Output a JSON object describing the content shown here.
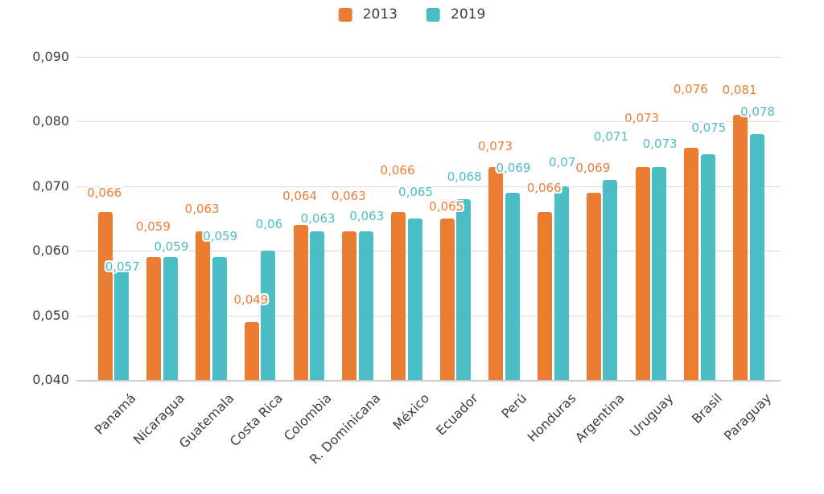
{
  "chart_data": {
    "type": "bar",
    "title": "",
    "categories": [
      "Panamá",
      "Nicaragua",
      "Guatemala",
      "Costa Rica",
      "Colombia",
      "R. Dominicana",
      "México",
      "Ecuador",
      "Perú",
      "Honduras",
      "Argentina",
      "Uruguay",
      "Brasil",
      "Paraguay"
    ],
    "series": [
      {
        "name": "2013",
        "color": "#EB7D33",
        "values": [
          0.066,
          0.059,
          0.063,
          0.049,
          0.064,
          0.063,
          0.066,
          0.065,
          0.073,
          0.066,
          0.069,
          0.073,
          0.076,
          0.081
        ],
        "labels": [
          "0,066",
          "0,059",
          "0,063",
          "0,049",
          "0,064",
          "0,063",
          "0,066",
          "0,065",
          "0,073",
          "0,066",
          "0,069",
          "0,073",
          "0,076",
          "0,081"
        ]
      },
      {
        "name": "2019",
        "color": "#4ABDC5",
        "values": [
          0.057,
          0.059,
          0.059,
          0.06,
          0.063,
          0.063,
          0.065,
          0.068,
          0.069,
          0.07,
          0.071,
          0.073,
          0.075,
          0.078
        ],
        "labels": [
          "0,057",
          "0,059",
          "0,059",
          "0,06",
          "0,063",
          "0,063",
          "0,065",
          "0,068",
          "0,069",
          "0,07",
          "0,071",
          "0,073",
          "0,075",
          "0,078"
        ]
      }
    ],
    "ylim": [
      0.04,
      0.09
    ],
    "yticks": [
      {
        "value": 0.09,
        "label": "0,090"
      },
      {
        "value": 0.08,
        "label": "0,080"
      },
      {
        "value": 0.07,
        "label": "0,070"
      },
      {
        "value": 0.06,
        "label": "0,060"
      },
      {
        "value": 0.05,
        "label": "0,050"
      },
      {
        "value": 0.04,
        "label": "0,040"
      }
    ],
    "grid": true,
    "legend_position": "top",
    "xlabel": "",
    "ylabel": "",
    "decimal_separator": ","
  }
}
